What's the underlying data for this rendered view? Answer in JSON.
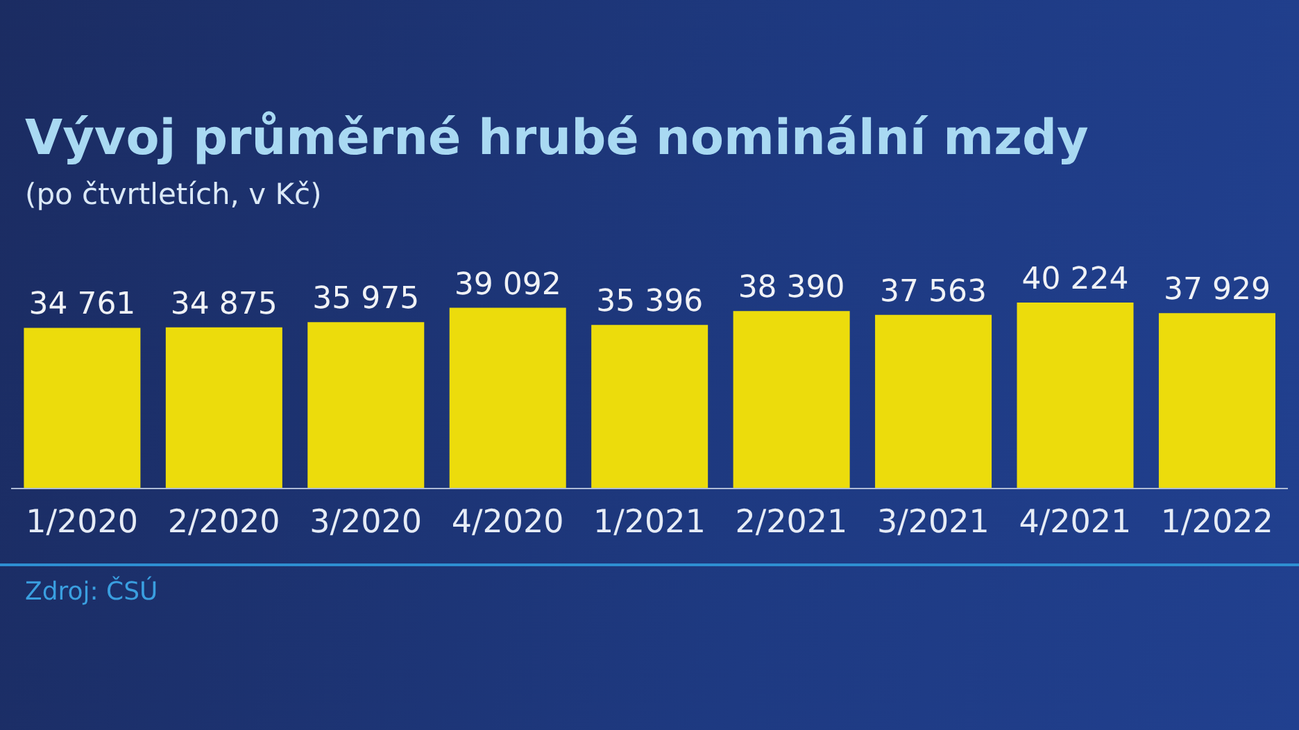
{
  "chart_data": {
    "type": "bar",
    "title": "Vývoj průměrné hrubé nominální mzdy",
    "subtitle": "(po čtvrtletích, v Kč)",
    "categories": [
      "1/2020",
      "2/2020",
      "3/2020",
      "4/2020",
      "1/2021",
      "2/2021",
      "3/2021",
      "4/2021",
      "1/2022"
    ],
    "values": [
      34761,
      34875,
      35975,
      39092,
      35396,
      38390,
      37563,
      40224,
      37929
    ],
    "value_labels": [
      "34 761",
      "34 875",
      "35 975",
      "39 092",
      "35 396",
      "38 390",
      "37 563",
      "40 224",
      "37 929"
    ],
    "color": "#ecdc0c",
    "tick_labels": "x",
    "annotations": [
      "Zdroj: ČSÚ"
    ]
  }
}
